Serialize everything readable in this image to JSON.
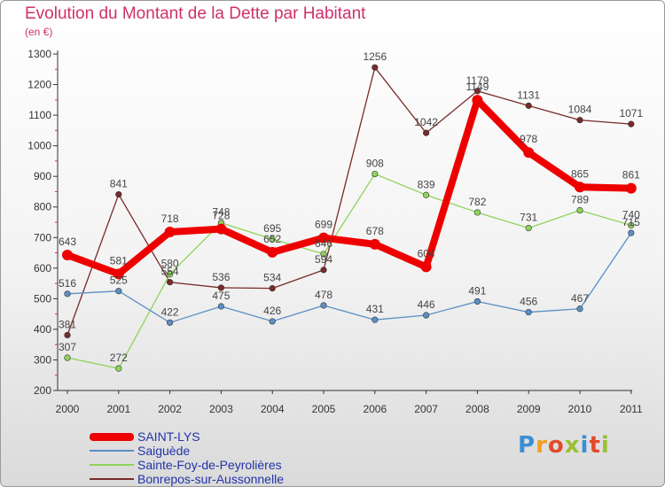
{
  "header": {
    "title": "Evolution du Montant de la Dette par Habitant",
    "subtitle": "(en €)"
  },
  "logo": {
    "text": "Proxiti"
  },
  "chart_data": {
    "type": "line",
    "title": "Evolution du Montant de la Dette par Habitant",
    "subtitle": "(en €)",
    "xlabel": "",
    "ylabel": "",
    "x": [
      "2000",
      "2001",
      "2002",
      "2003",
      "2004",
      "2005",
      "2006",
      "2007",
      "2008",
      "2009",
      "2010",
      "2011"
    ],
    "ylim": [
      200,
      1300
    ],
    "yticks": [
      200,
      300,
      400,
      500,
      600,
      700,
      800,
      900,
      1000,
      1100,
      1200,
      1300
    ],
    "grid": false,
    "legend_position": "bottom-left",
    "series": [
      {
        "name": "SAINT-LYS",
        "color": "#ee0000",
        "values": [
          643,
          581,
          718,
          728,
          652,
          699,
          678,
          604,
          1149,
          978,
          865,
          861
        ]
      },
      {
        "name": "Saiguède",
        "color": "#5b8fc4",
        "values": [
          516,
          525,
          422,
          475,
          426,
          478,
          431,
          446,
          491,
          456,
          467,
          715
        ]
      },
      {
        "name": "Sainte-Foy-de-Peyrolières",
        "color": "#8fd45a",
        "values": [
          307,
          272,
          580,
          748,
          695,
          646,
          908,
          839,
          782,
          731,
          789,
          740
        ]
      },
      {
        "name": "Bonrepos-sur-Aussonnelle",
        "color": "#7a2a2a",
        "values": [
          381,
          841,
          554,
          536,
          534,
          594,
          1256,
          1042,
          1179,
          1131,
          1084,
          1071
        ]
      }
    ]
  }
}
